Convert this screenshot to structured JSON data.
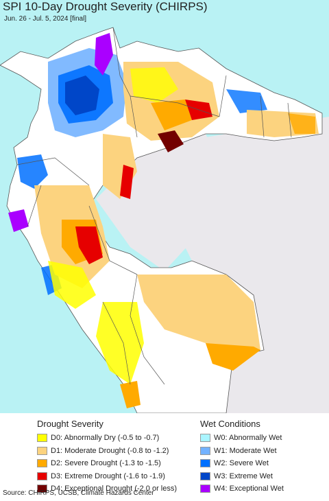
{
  "header": {
    "title": "SPI 10-Day Drought Severity (CHIRPS)",
    "subtitle": "Jun. 26 - Jul. 5, 2024 [final]"
  },
  "colors": {
    "ocean": "#b9f2f4",
    "land": "#ffffff",
    "outside": "#eae8ec",
    "border": "#555555"
  },
  "legend": {
    "drought": {
      "title": "Drought Severity",
      "items": [
        {
          "label": "D0: Abnormally Dry (-0.5 to -0.7)",
          "color": "#ffff00"
        },
        {
          "label": "D1: Moderate Drought (-0.8 to -1.2)",
          "color": "#fcd37f"
        },
        {
          "label": "D2: Severe Drought (-1.3 to -1.5)",
          "color": "#ffaa00"
        },
        {
          "label": "D3: Extreme Drought (-1.6 to -1.9)",
          "color": "#e60000"
        },
        {
          "label": "D4: Exceptional Drought (-2.0 or less)",
          "color": "#730000"
        }
      ]
    },
    "wet": {
      "title": "Wet Conditions",
      "items": [
        {
          "label": "W0: Abnormally Wet",
          "color": "#aaf5ff"
        },
        {
          "label": "W1: Moderate Wet",
          "color": "#73b2ff"
        },
        {
          "label": "W2: Severe Wet",
          "color": "#0070ff"
        },
        {
          "label": "W3: Extreme Wet",
          "color": "#0046c8"
        },
        {
          "label": "W4: Exceptional Wet",
          "color": "#aa00ff"
        }
      ]
    }
  },
  "footer": {
    "source": "Source: CHIRPS, UCSB, Climate Hazards Center"
  }
}
